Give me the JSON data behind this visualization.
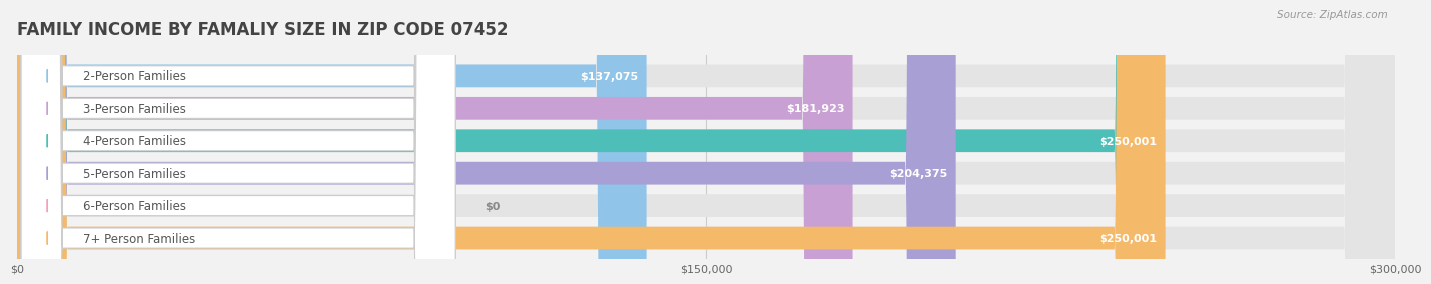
{
  "title": "FAMILY INCOME BY FAMALIY SIZE IN ZIP CODE 07452",
  "source": "Source: ZipAtlas.com",
  "categories": [
    "2-Person Families",
    "3-Person Families",
    "4-Person Families",
    "5-Person Families",
    "6-Person Families",
    "7+ Person Families"
  ],
  "values": [
    137075,
    181923,
    250001,
    204375,
    0,
    250001
  ],
  "bar_colors": [
    "#90c4e8",
    "#c9a0d4",
    "#4dbfb8",
    "#a89fd4",
    "#f4a0b8",
    "#f5b96a"
  ],
  "value_labels": [
    "$137,075",
    "$181,923",
    "$250,001",
    "$204,375",
    "$0",
    "$250,001"
  ],
  "xlim": [
    0,
    300000
  ],
  "xticks": [
    0,
    150000,
    300000
  ],
  "xtick_labels": [
    "$0",
    "$150,000",
    "$300,000"
  ],
  "background_color": "#f2f2f2",
  "bar_bg_color": "#e4e4e4",
  "title_fontsize": 12,
  "label_fontsize": 8.5,
  "value_fontsize": 8,
  "source_fontsize": 7.5
}
